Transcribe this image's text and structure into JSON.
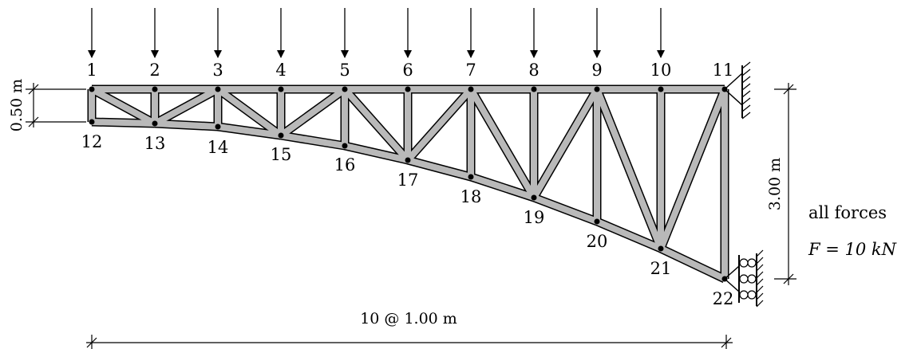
{
  "diagram": {
    "nodes": [
      {
        "id": "1",
        "label": "1"
      },
      {
        "id": "2",
        "label": "2"
      },
      {
        "id": "3",
        "label": "3"
      },
      {
        "id": "4",
        "label": "4"
      },
      {
        "id": "5",
        "label": "5"
      },
      {
        "id": "6",
        "label": "6"
      },
      {
        "id": "7",
        "label": "7"
      },
      {
        "id": "8",
        "label": "8"
      },
      {
        "id": "9",
        "label": "9"
      },
      {
        "id": "10",
        "label": "10"
      },
      {
        "id": "11",
        "label": "11"
      },
      {
        "id": "12",
        "label": "12"
      },
      {
        "id": "13",
        "label": "13"
      },
      {
        "id": "14",
        "label": "14"
      },
      {
        "id": "15",
        "label": "15"
      },
      {
        "id": "16",
        "label": "16"
      },
      {
        "id": "17",
        "label": "17"
      },
      {
        "id": "18",
        "label": "18"
      },
      {
        "id": "19",
        "label": "19"
      },
      {
        "id": "20",
        "label": "20"
      },
      {
        "id": "21",
        "label": "21"
      },
      {
        "id": "22",
        "label": "22"
      }
    ],
    "members": [
      [
        "1",
        "2"
      ],
      [
        "2",
        "3"
      ],
      [
        "3",
        "4"
      ],
      [
        "4",
        "5"
      ],
      [
        "5",
        "6"
      ],
      [
        "6",
        "7"
      ],
      [
        "7",
        "8"
      ],
      [
        "8",
        "9"
      ],
      [
        "9",
        "10"
      ],
      [
        "10",
        "11"
      ],
      [
        "12",
        "13"
      ],
      [
        "13",
        "14"
      ],
      [
        "14",
        "15"
      ],
      [
        "15",
        "16"
      ],
      [
        "16",
        "17"
      ],
      [
        "17",
        "18"
      ],
      [
        "18",
        "19"
      ],
      [
        "19",
        "20"
      ],
      [
        "20",
        "21"
      ],
      [
        "21",
        "22"
      ],
      [
        "1",
        "12"
      ],
      [
        "2",
        "13"
      ],
      [
        "3",
        "14"
      ],
      [
        "4",
        "15"
      ],
      [
        "5",
        "16"
      ],
      [
        "6",
        "17"
      ],
      [
        "7",
        "18"
      ],
      [
        "8",
        "19"
      ],
      [
        "9",
        "20"
      ],
      [
        "10",
        "21"
      ],
      [
        "11",
        "22"
      ],
      [
        "1",
        "13"
      ],
      [
        "13",
        "3"
      ],
      [
        "3",
        "15"
      ],
      [
        "15",
        "5"
      ],
      [
        "5",
        "17"
      ],
      [
        "17",
        "7"
      ],
      [
        "7",
        "19"
      ],
      [
        "19",
        "9"
      ],
      [
        "9",
        "21"
      ],
      [
        "21",
        "11"
      ]
    ],
    "loaded_nodes": [
      "1",
      "2",
      "3",
      "4",
      "5",
      "6",
      "7",
      "8",
      "9",
      "10"
    ],
    "supports": [
      {
        "node": "11",
        "type": "pin"
      },
      {
        "node": "22",
        "type": "roller"
      }
    ],
    "dimensions": {
      "height_left": "0.50 m",
      "height_right": "3.00 m",
      "span": "10 @ 1.00 m"
    },
    "note": {
      "line1": "all forces",
      "line2": "F = 10 kN"
    }
  }
}
